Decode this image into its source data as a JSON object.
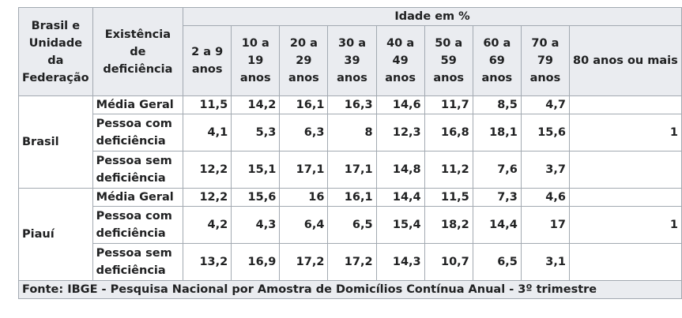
{
  "header": {
    "region_col": "Brasil e Unidade da Federação",
    "disability_col": "Existência de deficiência",
    "age_group": "Idade em %",
    "ages": [
      "2 a 9 anos",
      "10 a 19 anos",
      "20 a 29 anos",
      "30 a 39 anos",
      "40 a 49 anos",
      "50 a 59 anos",
      "60 a 69 anos",
      "70 a 79 anos",
      "80 anos ou mais"
    ]
  },
  "groups": [
    {
      "region": "Brasil",
      "rows": [
        {
          "label": "Média Geral",
          "values": [
            "11,5",
            "14,2",
            "16,1",
            "16,3",
            "14,6",
            "11,7",
            "8,5",
            "4,7",
            ""
          ]
        },
        {
          "label": "Pessoa com deficiência",
          "values": [
            "4,1",
            "5,3",
            "6,3",
            "8",
            "12,3",
            "16,8",
            "18,1",
            "15,6",
            "1"
          ]
        },
        {
          "label": "Pessoa sem deficiência",
          "values": [
            "12,2",
            "15,1",
            "17,1",
            "17,1",
            "14,8",
            "11,2",
            "7,6",
            "3,7",
            ""
          ]
        }
      ]
    },
    {
      "region": "Piauí",
      "rows": [
        {
          "label": "Média Geral",
          "values": [
            "12,2",
            "15,6",
            "16",
            "16,1",
            "14,4",
            "11,5",
            "7,3",
            "4,6",
            ""
          ]
        },
        {
          "label": "Pessoa com deficiência",
          "values": [
            "4,2",
            "4,3",
            "6,4",
            "6,5",
            "15,4",
            "18,2",
            "14,4",
            "17",
            "1"
          ]
        },
        {
          "label": "Pessoa sem deficiência",
          "values": [
            "13,2",
            "16,9",
            "17,2",
            "17,2",
            "14,3",
            "10,7",
            "6,5",
            "3,1",
            ""
          ]
        }
      ]
    }
  ],
  "footer": "Fonte: IBGE - Pesquisa Nacional por Amostra de Domicílios Contínua Anual - 3º trimestre"
}
